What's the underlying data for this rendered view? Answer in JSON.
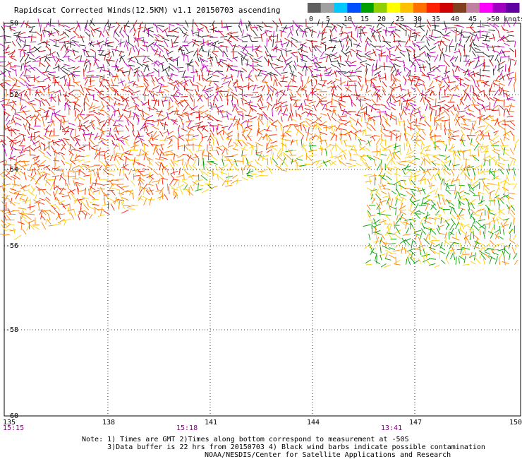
{
  "title": "Rapidscat Corrected Winds(12.5KM) v1.1 20150703 ascending",
  "legend": {
    "labels": [
      "0",
      "5",
      "10",
      "15",
      "20",
      "25",
      "30",
      "35",
      "40",
      "45",
      ">50 knots"
    ],
    "colors": [
      "#606060",
      "#a0a0a0",
      "#00c8ff",
      "#0050ff",
      "#00a000",
      "#90d000",
      "#ffff00",
      "#ffc000",
      "#ff7000",
      "#ff2000",
      "#d00000",
      "#804020",
      "#c080a0",
      "#ff00ff",
      "#a000c0",
      "#6000a0"
    ]
  },
  "axes": {
    "lat_labels": [
      "-50",
      "-52",
      "-54",
      "-56",
      "-58",
      "-60"
    ],
    "lon_labels": [
      "135",
      "138",
      "141",
      "144",
      "147",
      "150"
    ],
    "times": [
      "15:15",
      "15:18",
      "13:41"
    ]
  },
  "note_line1": "Note: 1) Times are GMT 2)Times along bottom correspond to measurement at -50S",
  "note_line2": "      3)Data buffer is 22 hrs from 20150703 4) Black wind barbs indicate possible contamination",
  "credit": "NOAA/NESDIS/Center for Satellite Applications and Research"
}
